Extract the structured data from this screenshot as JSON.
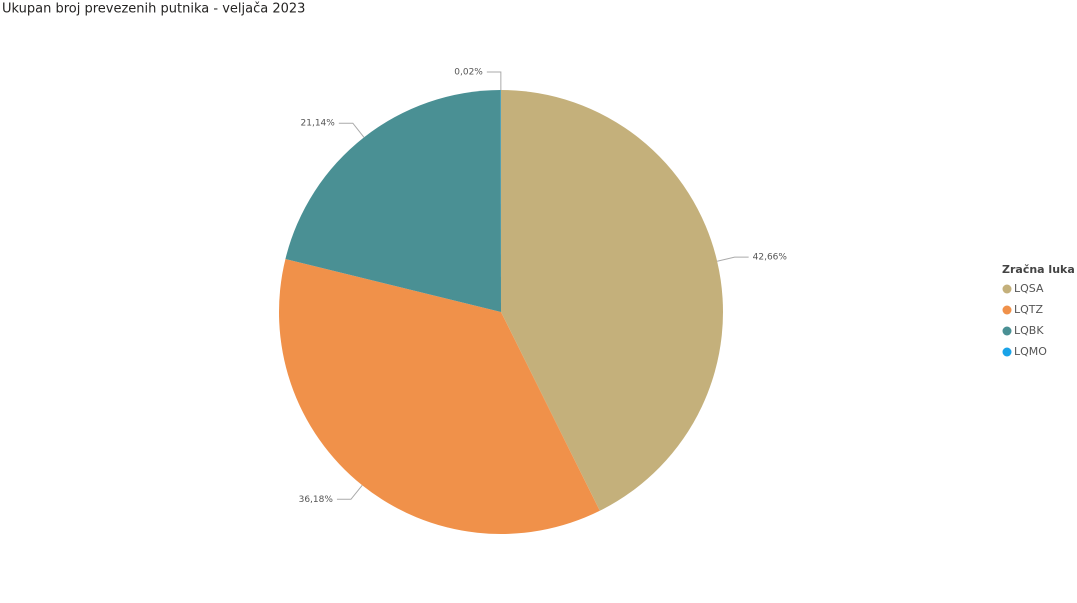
{
  "chart_data": {
    "type": "pie",
    "title": "Ukupan broj prevezenih putnika - veljača 2023",
    "legend_title": "Zračna luka",
    "legend": "right",
    "categories": [
      "LQSA",
      "LQTZ",
      "LQBK",
      "LQMO"
    ],
    "values": [
      42.66,
      36.18,
      21.14,
      0.02
    ],
    "value_labels": [
      "42,66%",
      "36,18%",
      "21,14%",
      "0,02%"
    ],
    "colors": [
      "#C4B07B",
      "#F0914A",
      "#4A9094",
      "#1AA3E8"
    ]
  }
}
